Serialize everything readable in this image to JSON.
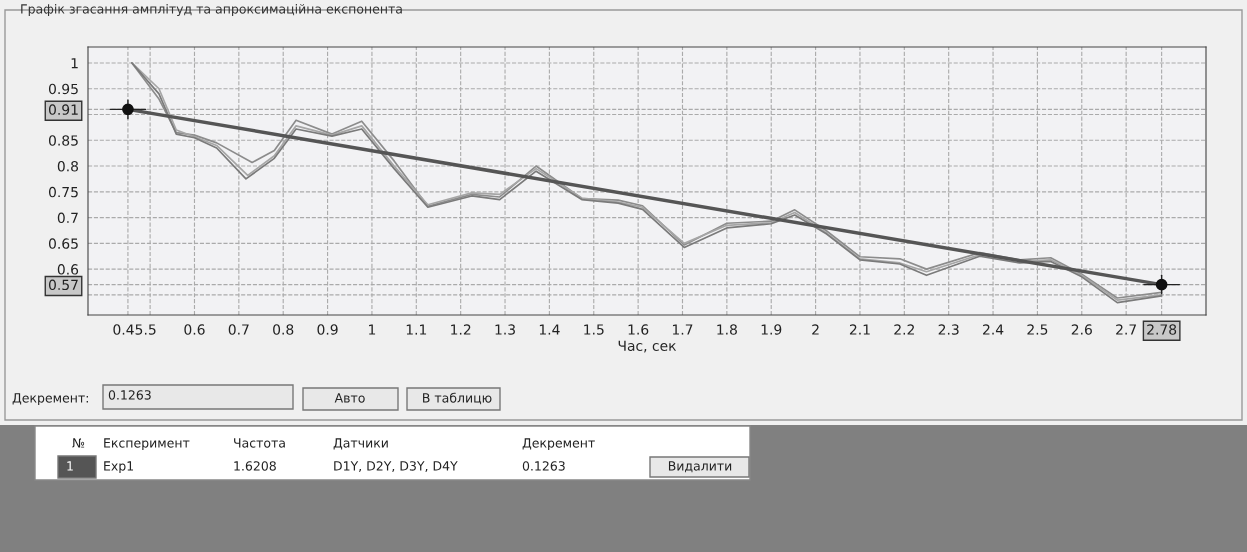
{
  "chart_data": {
    "type": "line",
    "title": "Графік згасання амплітуд та апроксимаційна експонента",
    "xlabel": "Час, сек",
    "xlim": [
      0.36,
      2.88
    ],
    "ylim": [
      0.511,
      1.031
    ],
    "xticks": [
      {
        "value": 0.45,
        "label": "0.45"
      },
      {
        "value": 0.5,
        "label": ".5"
      },
      0.6,
      0.7,
      0.8,
      0.9,
      1,
      1.1,
      1.2,
      1.3,
      1.4,
      1.5,
      1.6,
      1.7,
      1.8,
      1.9,
      2,
      2.1,
      2.2,
      2.3,
      2.4,
      2.5,
      2.6,
      2.7,
      {
        "value": 2.78,
        "label": "2.78"
      }
    ],
    "yticks": [
      {
        "value": 0.55,
        "label": null
      },
      {
        "value": 0.57,
        "label": "0.57"
      },
      0.6,
      0.65,
      0.7,
      0.75,
      0.8,
      0.85,
      {
        "value": 0.91,
        "label": "0.91"
      },
      {
        "value": 0.9,
        "label": null
      },
      0.95,
      1
    ],
    "grid": true,
    "series": [
      {
        "color": "#8c8c8c",
        "x": [
          0.459,
          0.52,
          0.559,
          0.6,
          0.65,
          0.73,
          0.78,
          0.829,
          0.91,
          0.977,
          1.05,
          1.126,
          1.225,
          1.288,
          1.37,
          1.473,
          1.555,
          1.61,
          1.704,
          1.8,
          1.9,
          1.953,
          2.025,
          2.1,
          2.19,
          2.25,
          2.37,
          2.46,
          2.53,
          2.6,
          2.68,
          2.78
        ],
        "values": [
          1.0,
          0.93,
          0.865,
          0.86,
          0.845,
          0.807,
          0.83,
          0.889,
          0.862,
          0.887,
          0.81,
          0.722,
          0.745,
          0.74,
          0.8,
          0.737,
          0.734,
          0.723,
          0.647,
          0.689,
          0.693,
          0.715,
          0.674,
          0.624,
          0.62,
          0.6,
          0.632,
          0.618,
          0.622,
          0.59,
          0.544,
          0.555
        ]
      },
      {
        "color": "#a6a6a6",
        "x": [
          0.459,
          0.52,
          0.559,
          0.6,
          0.65,
          0.72,
          0.78,
          0.829,
          0.91,
          0.977,
          1.05,
          1.126,
          1.225,
          1.288,
          1.37,
          1.473,
          1.555,
          1.61,
          1.704,
          1.8,
          1.9,
          1.953,
          2.025,
          2.1,
          2.19,
          2.25,
          2.37,
          2.46,
          2.53,
          2.6,
          2.68,
          2.78
        ],
        "values": [
          1.0,
          0.95,
          0.87,
          0.857,
          0.84,
          0.782,
          0.82,
          0.878,
          0.86,
          0.878,
          0.8,
          0.725,
          0.748,
          0.745,
          0.795,
          0.738,
          0.73,
          0.72,
          0.65,
          0.685,
          0.69,
          0.71,
          0.67,
          0.62,
          0.612,
          0.595,
          0.628,
          0.615,
          0.618,
          0.588,
          0.54,
          0.55
        ]
      },
      {
        "color": "#7a7a7a",
        "x": [
          0.459,
          0.52,
          0.559,
          0.6,
          0.65,
          0.716,
          0.78,
          0.829,
          0.91,
          0.977,
          1.05,
          1.126,
          1.225,
          1.288,
          1.37,
          1.473,
          1.555,
          1.61,
          1.704,
          1.8,
          1.9,
          1.953,
          2.025,
          2.1,
          2.19,
          2.25,
          2.37,
          2.46,
          2.53,
          2.6,
          2.68,
          2.78
        ],
        "values": [
          1.0,
          0.94,
          0.862,
          0.855,
          0.835,
          0.775,
          0.815,
          0.872,
          0.858,
          0.872,
          0.795,
          0.72,
          0.742,
          0.735,
          0.79,
          0.735,
          0.728,
          0.716,
          0.642,
          0.68,
          0.688,
          0.705,
          0.668,
          0.618,
          0.61,
          0.588,
          0.625,
          0.612,
          0.615,
          0.585,
          0.535,
          0.548
        ]
      },
      {
        "color": "#555555",
        "x": [
          0.45,
          2.78
        ],
        "values": [
          0.91,
          0.57
        ]
      },
      {
        "type": "scatter",
        "color": "#111111",
        "marker": "circle",
        "x": [
          0.45,
          2.78
        ],
        "values": [
          0.91,
          0.57
        ]
      }
    ],
    "annotations": [
      "Декремент:",
      "0.1263",
      "Авто",
      "В таблицю",
      "№",
      "Експеримент",
      "Частота",
      "Датчики",
      "Декремент",
      "1",
      "Exp1",
      "1.6208",
      "D1Y, D2Y, D3Y, D4Y",
      "0.1263",
      "Видалити"
    ]
  }
}
